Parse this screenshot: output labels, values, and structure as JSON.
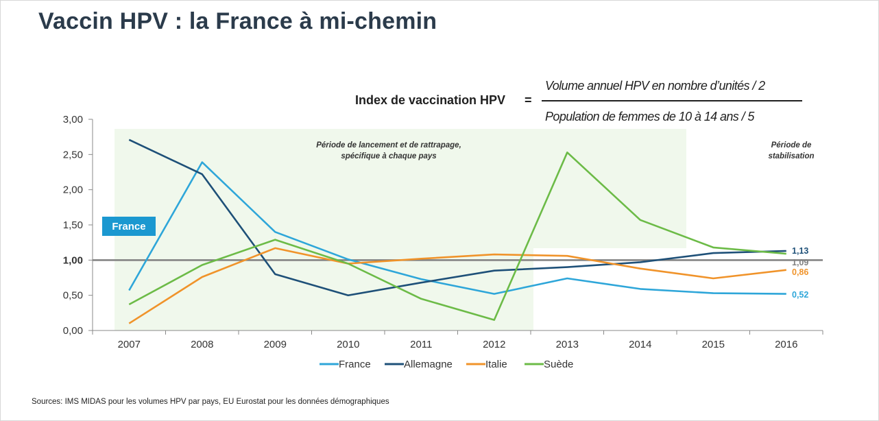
{
  "title": "Vaccin HPV : la France à mi-chemin",
  "formula": {
    "label": "Index de vaccination HPV",
    "equals": "=",
    "numerator": "Volume annuel HPV en nombre d’unités / 2",
    "denominator": "Population de femmes de 10 à 14 ans / 5"
  },
  "source": "Sources: IMS MIDAS  pour les volumes HPV par pays, EU Eurostat pour les données démographiques",
  "chart_data": {
    "type": "line",
    "x": [
      "2007",
      "2008",
      "2009",
      "2010",
      "2011",
      "2012",
      "2013",
      "2014",
      "2015",
      "2016"
    ],
    "ylim": [
      0,
      3
    ],
    "yticks": [
      "0,00",
      "0,50",
      "1,00",
      "1,50",
      "2,00",
      "2,50",
      "3,00"
    ],
    "reference_line": {
      "value": 1.0,
      "color": "#7f7f7f"
    },
    "legend_position": "bottom",
    "series": [
      {
        "name": "France",
        "color": "#2ea6d9",
        "values": [
          0.57,
          2.39,
          1.4,
          1.01,
          0.73,
          0.52,
          0.74,
          0.59,
          0.53,
          0.52
        ],
        "end_label": "0,52"
      },
      {
        "name": "Allemagne",
        "color": "#1e5078",
        "values": [
          2.71,
          2.22,
          0.8,
          0.5,
          0.68,
          0.85,
          0.9,
          0.97,
          1.1,
          1.13
        ],
        "end_label": "1,13"
      },
      {
        "name": "Italie",
        "color": "#f0932a",
        "values": [
          0.1,
          0.76,
          1.17,
          0.95,
          1.02,
          1.08,
          1.06,
          0.88,
          0.74,
          0.86
        ],
        "end_label": "0,86"
      },
      {
        "name": "Suède",
        "color": "#6cbb47",
        "values": [
          0.37,
          0.93,
          1.29,
          0.95,
          0.45,
          0.15,
          2.53,
          1.57,
          1.18,
          1.09
        ],
        "end_label": "1,09"
      }
    ],
    "end_label_colors": [
      "#2ea6d9",
      "#1e5078",
      "#f0932a",
      "#808080"
    ],
    "shaded_periods": [
      {
        "from": "2007",
        "to": "2012",
        "label": "Période de lancement  et de rattrapage,\nspécifique à chaque pays"
      },
      {
        "from": "2012",
        "to": "2014",
        "label": ""
      }
    ],
    "stabilisation_label": "Période de\nstabilisation",
    "callout": {
      "text": "France",
      "color": "#1b98d0"
    }
  }
}
